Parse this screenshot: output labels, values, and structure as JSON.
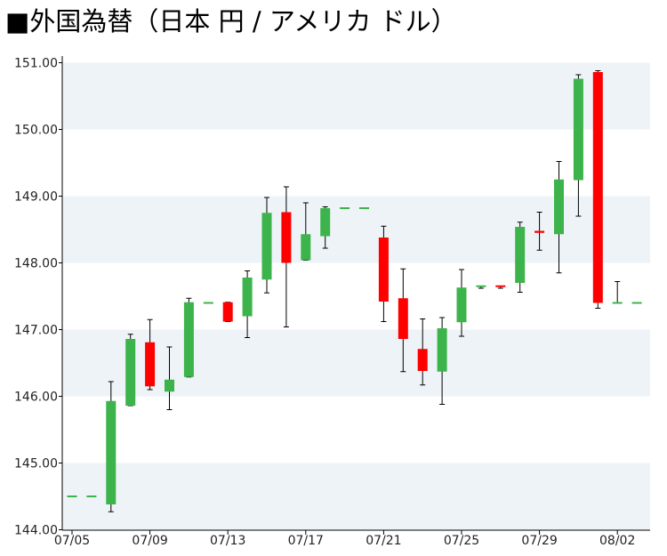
{
  "chart_data": {
    "type": "candlestick",
    "title": "■外国為替（日本 円 / アメリカ ドル）",
    "xlabel": "",
    "ylabel": "",
    "ylim": [
      144.0,
      151.2
    ],
    "y_ticks": [
      "144.00",
      "145.00",
      "146.00",
      "147.00",
      "148.00",
      "149.00",
      "150.00",
      "151.00"
    ],
    "x_ticks": [
      {
        "label": "07/05",
        "day": 0
      },
      {
        "label": "07/09",
        "day": 4
      },
      {
        "label": "07/13",
        "day": 8
      },
      {
        "label": "07/17",
        "day": 12
      },
      {
        "label": "07/21",
        "day": 16
      },
      {
        "label": "07/25",
        "day": 20
      },
      {
        "label": "07/29",
        "day": 24
      },
      {
        "label": "08/02",
        "day": 28
      }
    ],
    "grid": "horizontal-bands",
    "colors": {
      "up": "#3cb44b",
      "down": "#ff0000",
      "band": "#eef3f8",
      "wick": "#000000"
    },
    "candles": [
      {
        "day": 0,
        "open": 144.5,
        "high": 144.5,
        "low": 144.5,
        "close": 144.5
      },
      {
        "day": 1,
        "open": 144.5,
        "high": 144.5,
        "low": 144.5,
        "close": 144.5
      },
      {
        "day": 2,
        "open": 144.38,
        "high": 146.22,
        "low": 144.27,
        "close": 145.93
      },
      {
        "day": 3,
        "open": 145.86,
        "high": 146.93,
        "low": 145.86,
        "close": 146.86
      },
      {
        "day": 4,
        "open": 146.81,
        "high": 147.15,
        "low": 146.1,
        "close": 146.15
      },
      {
        "day": 5,
        "open": 146.07,
        "high": 146.74,
        "low": 145.8,
        "close": 146.25
      },
      {
        "day": 6,
        "open": 146.29,
        "high": 147.47,
        "low": 146.29,
        "close": 147.41
      },
      {
        "day": 7,
        "open": 147.4,
        "high": 147.4,
        "low": 147.4,
        "close": 147.4
      },
      {
        "day": 8,
        "open": 147.41,
        "high": 147.41,
        "low": 147.12,
        "close": 147.12
      },
      {
        "day": 9,
        "open": 147.2,
        "high": 147.88,
        "low": 146.88,
        "close": 147.78
      },
      {
        "day": 10,
        "open": 147.75,
        "high": 148.98,
        "low": 147.55,
        "close": 148.75
      },
      {
        "day": 11,
        "open": 148.76,
        "high": 149.14,
        "low": 147.04,
        "close": 148.0
      },
      {
        "day": 12,
        "open": 148.04,
        "high": 148.9,
        "low": 148.04,
        "close": 148.43
      },
      {
        "day": 13,
        "open": 148.4,
        "high": 148.84,
        "low": 148.22,
        "close": 148.82
      },
      {
        "day": 14,
        "open": 148.82,
        "high": 148.82,
        "low": 148.82,
        "close": 148.82
      },
      {
        "day": 15,
        "open": 148.82,
        "high": 148.82,
        "low": 148.82,
        "close": 148.82
      },
      {
        "day": 16,
        "open": 148.38,
        "high": 148.55,
        "low": 147.12,
        "close": 147.42
      },
      {
        "day": 17,
        "open": 147.47,
        "high": 147.91,
        "low": 146.37,
        "close": 146.86
      },
      {
        "day": 18,
        "open": 146.71,
        "high": 147.16,
        "low": 146.17,
        "close": 146.38
      },
      {
        "day": 19,
        "open": 146.37,
        "high": 147.18,
        "low": 145.88,
        "close": 147.02
      },
      {
        "day": 20,
        "open": 147.11,
        "high": 147.9,
        "low": 146.9,
        "close": 147.63
      },
      {
        "day": 21,
        "open": 147.65,
        "high": 147.65,
        "low": 147.62,
        "close": 147.65
      },
      {
        "day": 22,
        "open": 147.65,
        "high": 147.65,
        "low": 147.62,
        "close": 147.63
      },
      {
        "day": 23,
        "open": 147.7,
        "high": 148.61,
        "low": 147.56,
        "close": 148.54
      },
      {
        "day": 24,
        "open": 148.48,
        "high": 148.76,
        "low": 148.19,
        "close": 148.45
      },
      {
        "day": 25,
        "open": 148.43,
        "high": 149.52,
        "low": 147.85,
        "close": 149.25
      },
      {
        "day": 26,
        "open": 149.24,
        "high": 150.82,
        "low": 148.7,
        "close": 150.76
      },
      {
        "day": 27,
        "open": 150.86,
        "high": 150.88,
        "low": 147.32,
        "close": 147.4
      },
      {
        "day": 28,
        "open": 147.4,
        "high": 147.72,
        "low": 147.4,
        "close": 147.4
      },
      {
        "day": 29,
        "open": 147.4,
        "high": 147.4,
        "low": 147.4,
        "close": 147.4
      }
    ]
  }
}
